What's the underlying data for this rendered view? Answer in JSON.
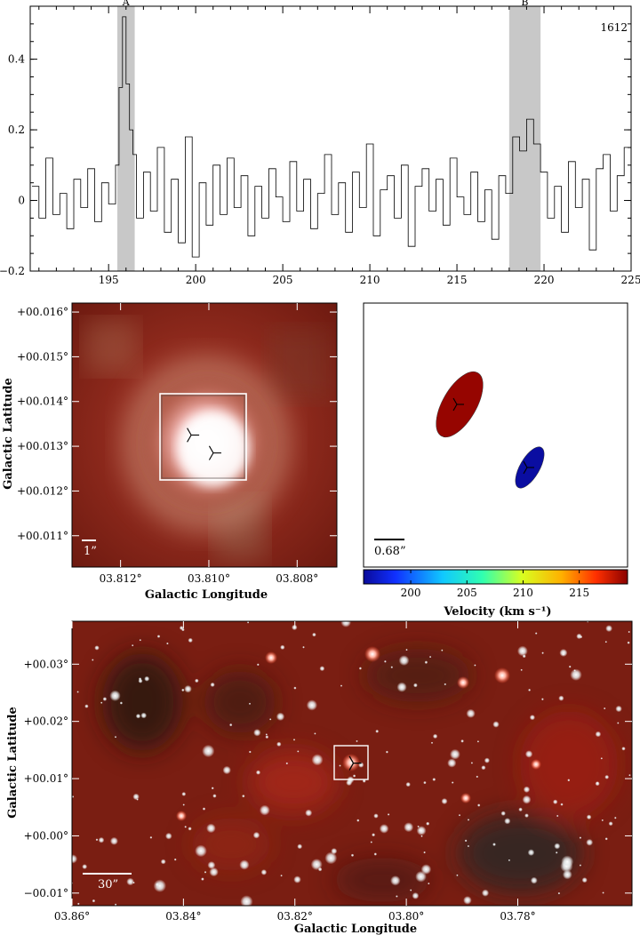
{
  "chart_data": [
    {
      "type": "line",
      "panel": "spectrum",
      "annotation": "1612",
      "xlim": [
        190.5,
        225
      ],
      "ylim": [
        -0.2,
        0.55
      ],
      "xticks": [
        195,
        200,
        205,
        210,
        215,
        220,
        225
      ],
      "yticks": [
        -0.2,
        0,
        0.2,
        0.4
      ],
      "ytick_labels": [
        "−0.2",
        "0",
        "0.2",
        "0.4"
      ],
      "grid": false,
      "shaded_regions": [
        {
          "label": "A",
          "x": [
            195.5,
            196.5
          ]
        },
        {
          "label": "B",
          "x": [
            218.0,
            219.8
          ]
        }
      ],
      "series": [
        {
          "style": "step",
          "x": [
            190.6,
            191.0,
            191.4,
            191.8,
            192.2,
            192.6,
            193.0,
            193.4,
            193.8,
            194.2,
            194.6,
            195.0,
            195.4,
            195.6,
            195.8,
            196.0,
            196.2,
            196.4,
            196.6,
            197.0,
            197.4,
            197.8,
            198.2,
            198.6,
            199.0,
            199.4,
            199.8,
            200.2,
            200.6,
            201.0,
            201.4,
            201.8,
            202.2,
            202.6,
            203.0,
            203.4,
            203.8,
            204.2,
            204.6,
            205.0,
            205.4,
            205.8,
            206.2,
            206.6,
            207.0,
            207.4,
            207.8,
            208.2,
            208.6,
            209.0,
            209.4,
            209.8,
            210.2,
            210.6,
            211.0,
            211.4,
            211.8,
            212.2,
            212.6,
            213.0,
            213.4,
            213.8,
            214.2,
            214.6,
            215.0,
            215.4,
            215.8,
            216.2,
            216.6,
            217.0,
            217.4,
            217.8,
            218.2,
            218.6,
            219.0,
            219.4,
            219.8,
            220.2,
            220.6,
            221.0,
            221.4,
            221.8,
            222.2,
            222.6,
            223.0,
            223.4,
            223.8,
            224.2,
            224.6
          ],
          "y": [
            0.04,
            -0.05,
            0.12,
            -0.04,
            0.02,
            -0.08,
            0.06,
            -0.02,
            0.09,
            -0.06,
            0.05,
            -0.01,
            0.1,
            0.32,
            0.52,
            0.33,
            0.2,
            0.13,
            -0.05,
            0.08,
            -0.03,
            0.15,
            -0.09,
            0.06,
            -0.12,
            0.18,
            -0.16,
            0.05,
            -0.07,
            0.1,
            -0.04,
            0.12,
            -0.02,
            0.07,
            -0.1,
            0.04,
            -0.05,
            0.09,
            0.01,
            -0.06,
            0.11,
            -0.03,
            0.06,
            -0.08,
            0.02,
            0.13,
            -0.04,
            0.05,
            -0.09,
            0.08,
            -0.02,
            0.16,
            -0.1,
            0.03,
            0.07,
            -0.05,
            0.1,
            -0.13,
            0.04,
            0.09,
            -0.03,
            0.06,
            -0.07,
            0.12,
            0.01,
            -0.04,
            0.08,
            -0.06,
            0.03,
            -0.11,
            0.07,
            0.02,
            0.18,
            0.14,
            0.23,
            0.16,
            0.08,
            -0.05,
            0.04,
            -0.09,
            0.11,
            -0.02,
            0.06,
            -0.14,
            0.09,
            0.13,
            -0.03,
            0.07,
            0.15
          ]
        }
      ]
    },
    {
      "type": "heatmap",
      "panel": "zoom-image",
      "xlabel": "Galactic Longitude",
      "ylabel": "Galactic Latitude",
      "xtick_labels": [
        "03.812°",
        "03.810°",
        "03.808°"
      ],
      "xtick_values": [
        3.812,
        3.81,
        3.808
      ],
      "ytick_labels": [
        "+00.011°",
        "+00.012°",
        "+00.013°",
        "+00.014°",
        "+00.015°",
        "+00.016°"
      ],
      "ytick_values": [
        0.011,
        0.012,
        0.013,
        0.014,
        0.015,
        0.016
      ],
      "xlim": [
        3.8131,
        3.8071
      ],
      "ylim": [
        0.0103,
        0.0162
      ],
      "scale_bar_label": "1”",
      "markers": [
        {
          "l": 3.8104,
          "b": 0.01325
        },
        {
          "l": 3.8099,
          "b": 0.01285
        }
      ]
    },
    {
      "type": "scatter",
      "panel": "maser-positions",
      "colorbar_label": "Velocity (km s⁻¹)",
      "colorbar_ticks": [
        200,
        205,
        210,
        215
      ],
      "colorbar_range": [
        195.8,
        219.3
      ],
      "scale_bar_label": "0.68”",
      "points": [
        {
          "velocity": 219.0,
          "shape": "ellipse"
        },
        {
          "velocity": 196.0,
          "shape": "ellipse"
        }
      ]
    },
    {
      "type": "heatmap",
      "panel": "wide-field-image",
      "xlabel": "Galactic Longitude",
      "ylabel": "Galactic Latitude",
      "xtick_labels": [
        "03.86°",
        "03.84°",
        "03.82°",
        "03.80°",
        "03.78°"
      ],
      "xtick_values": [
        3.86,
        3.84,
        3.82,
        3.8,
        3.78
      ],
      "ytick_labels": [
        "−00.01°",
        "+00.00°",
        "+00.01°",
        "+00.02°",
        "+00.03°"
      ],
      "ytick_values": [
        -0.01,
        0.0,
        0.01,
        0.02,
        0.03
      ],
      "xlim": [
        3.86,
        3.7595
      ],
      "ylim": [
        -0.0122,
        0.0375
      ],
      "scale_bar_label": "30”",
      "box_center": {
        "l": 3.8095,
        "b": 0.0127
      }
    }
  ]
}
